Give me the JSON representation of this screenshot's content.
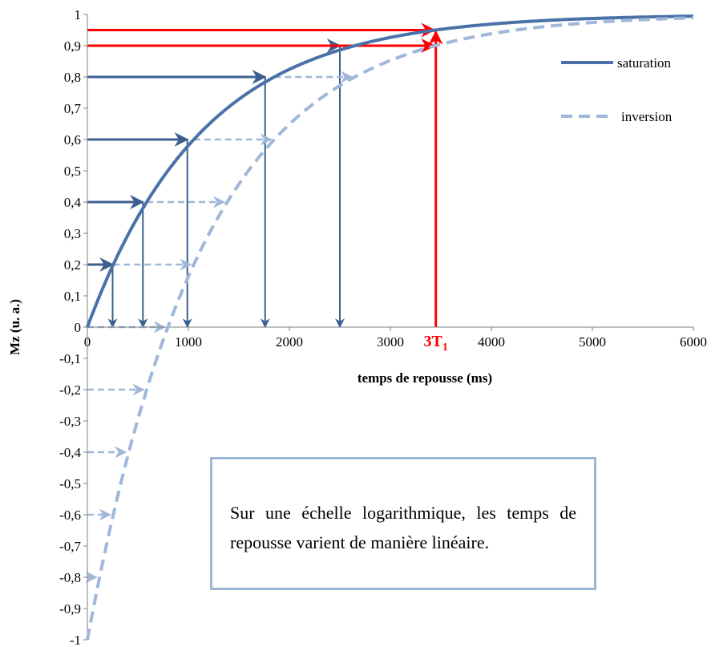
{
  "chart_data": {
    "type": "line",
    "title": "",
    "xlabel": "temps de repousse (ms)",
    "ylabel": "Mz (u. a.)",
    "xlim": [
      0,
      6000
    ],
    "ylim": [
      -1,
      1
    ],
    "x_ticks": [
      0,
      1000,
      2000,
      3000,
      4000,
      5000,
      6000
    ],
    "x_tick_labels": [
      "0",
      "1000",
      "2000",
      "3000",
      "4000",
      "5000",
      "6000"
    ],
    "y_ticks": [
      1,
      0.9,
      0.8,
      0.7,
      0.6,
      0.5,
      0.4,
      0.3,
      0.2,
      0.1,
      0,
      -0.1,
      -0.2,
      -0.3,
      -0.4,
      -0.5,
      -0.6,
      -0.7,
      -0.8,
      -0.9,
      -1
    ],
    "y_tick_labels": [
      "1",
      "0,9",
      "0,8",
      "0,7",
      "0,6",
      "0,5",
      "0,4",
      "0,3",
      "0,2",
      "0,1",
      "0",
      "-0,1",
      "-0,2",
      "-0,3",
      "-0,4",
      "-0,5",
      "-0,6",
      "-0,7",
      "-0,8",
      "-0,9",
      "-1"
    ],
    "legend_position": "right",
    "grid": false,
    "T1_ms": 1150,
    "series": [
      {
        "name": "saturation",
        "formula": "1 - exp(-t/T1)",
        "style": "solid",
        "color": "#4a72a8"
      },
      {
        "name": "inversion",
        "formula": "1 - 2*exp(-t/T1)",
        "style": "dashed",
        "color": "#9fb7d9"
      }
    ],
    "saturation_arrows": [
      {
        "level": 0.2,
        "x": 250
      },
      {
        "level": 0.4,
        "x": 550
      },
      {
        "level": 0.6,
        "x": 990
      },
      {
        "level": 0.8,
        "x": 1760
      },
      {
        "level": 0.9,
        "x": 2500
      }
    ],
    "inversion_arrows": [
      {
        "level": 0,
        "x": 550
      },
      {
        "level": -0.2,
        "x": 550
      },
      {
        "level": -0.4,
        "x": 390
      },
      {
        "level": -0.6,
        "x": 250
      },
      {
        "level": -0.8,
        "x": 100
      },
      {
        "level": 0.2,
        "x": 990
      },
      {
        "level": 0.4,
        "x": 1330
      },
      {
        "level": 0.6,
        "x": 1760
      },
      {
        "level": 0.8,
        "x": 2500
      },
      {
        "level": 0.9,
        "x": 3200
      }
    ],
    "marker_3T1": {
      "x": 3450,
      "label_main": "3T",
      "label_sub": "1",
      "levels": [
        0.95,
        0.9
      ],
      "color": "#ff0000"
    },
    "annotation": "Sur une échelle logarithmique, les temps de repousse varient de manière linéaire."
  }
}
